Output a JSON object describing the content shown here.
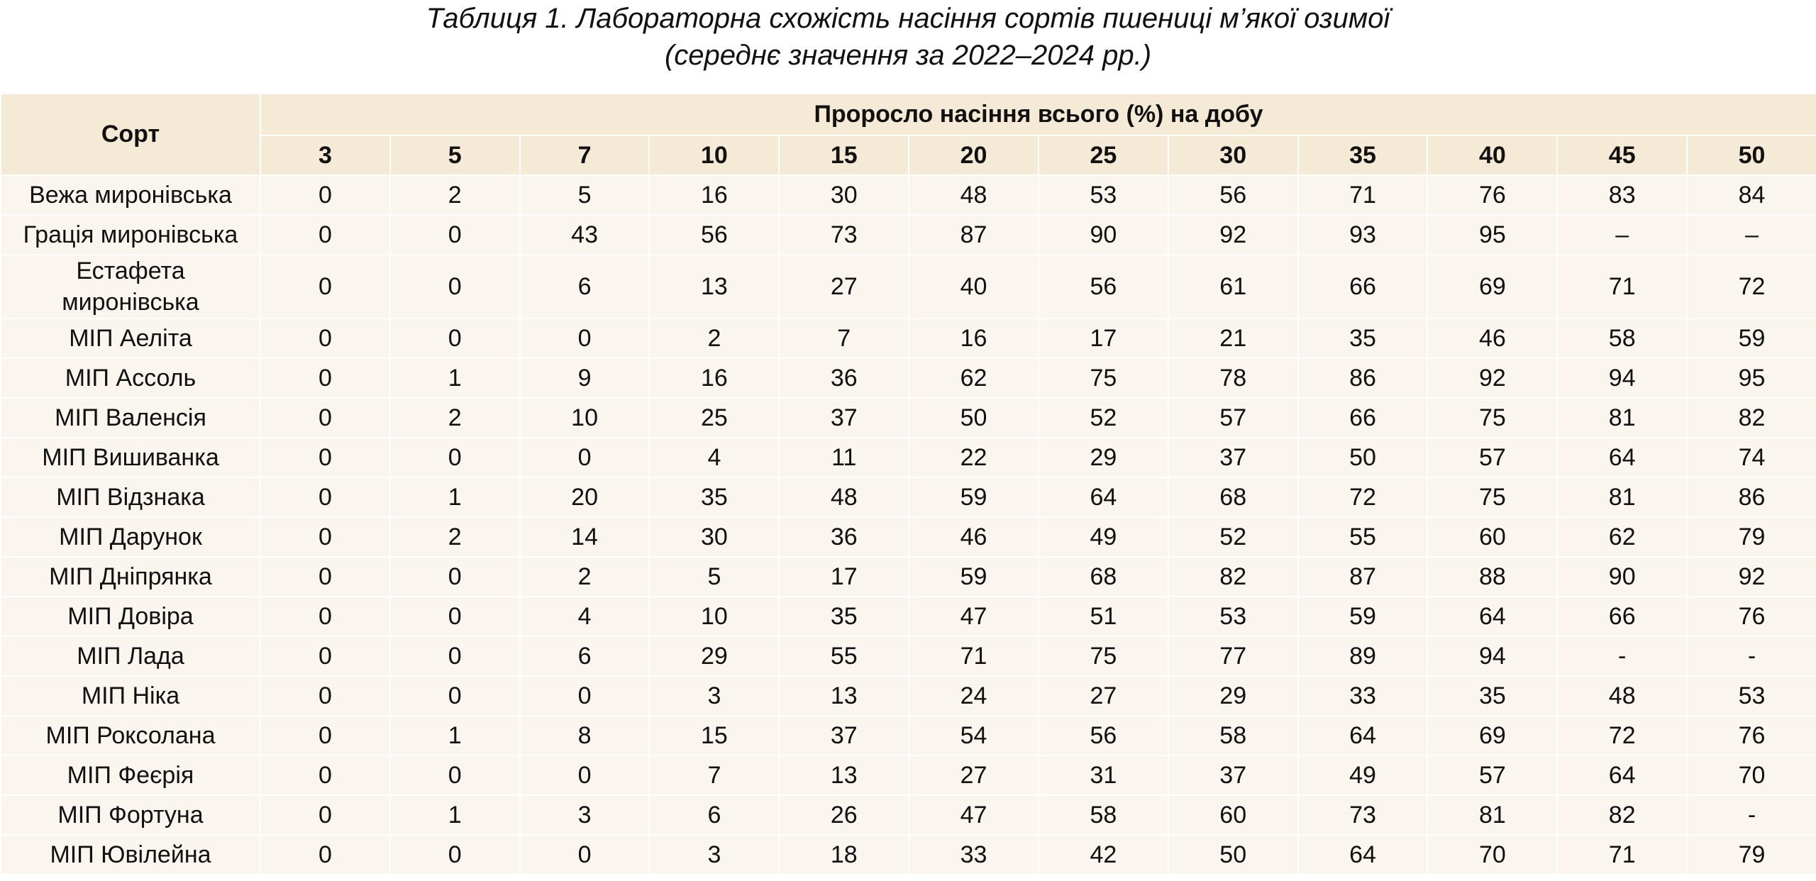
{
  "header": {
    "title": "Таблиця 1. Лабораторна схожість насіння сортів пшениці м’якої озимої",
    "subtitle": "(середнє значення за 2022–2024 рр.)"
  },
  "table": {
    "columns": {
      "variety": "Сорт",
      "group": "Проросло насіння всього (%) на добу",
      "days": [
        3,
        5,
        7,
        10,
        15,
        20,
        25,
        30,
        35,
        40,
        45,
        50
      ]
    },
    "rows": [
      {
        "name": "Вежа миронівська",
        "values": [
          0,
          2,
          5,
          16,
          30,
          48,
          53,
          56,
          71,
          76,
          83,
          84
        ]
      },
      {
        "name": "Грація миронівська",
        "values": [
          0,
          0,
          43,
          56,
          73,
          87,
          90,
          92,
          93,
          95,
          "–",
          "–"
        ]
      },
      {
        "name": "Естафета миронівська",
        "values": [
          0,
          0,
          6,
          13,
          27,
          40,
          56,
          61,
          66,
          69,
          71,
          72
        ]
      },
      {
        "name": "МІП Аеліта",
        "values": [
          0,
          0,
          0,
          2,
          7,
          16,
          17,
          21,
          35,
          46,
          58,
          59
        ]
      },
      {
        "name": "МІП Ассоль",
        "values": [
          0,
          1,
          9,
          16,
          36,
          62,
          75,
          78,
          86,
          92,
          94,
          95
        ]
      },
      {
        "name": "МІП Валенсія",
        "values": [
          0,
          2,
          10,
          25,
          37,
          50,
          52,
          57,
          66,
          75,
          81,
          82
        ]
      },
      {
        "name": "МІП Вишиванка",
        "values": [
          0,
          0,
          0,
          4,
          11,
          22,
          29,
          37,
          50,
          57,
          64,
          74
        ]
      },
      {
        "name": "МІП Відзнака",
        "values": [
          0,
          1,
          20,
          35,
          48,
          59,
          64,
          68,
          72,
          75,
          81,
          86
        ]
      },
      {
        "name": "МІП Дарунок",
        "values": [
          0,
          2,
          14,
          30,
          36,
          46,
          49,
          52,
          55,
          60,
          62,
          79
        ]
      },
      {
        "name": "МІП Дніпрянка",
        "values": [
          0,
          0,
          2,
          5,
          17,
          59,
          68,
          82,
          87,
          88,
          90,
          92
        ]
      },
      {
        "name": "МІП Довіра",
        "values": [
          0,
          0,
          4,
          10,
          35,
          47,
          51,
          53,
          59,
          64,
          66,
          76
        ]
      },
      {
        "name": "МІП Лада",
        "values": [
          0,
          0,
          6,
          29,
          55,
          71,
          75,
          77,
          89,
          94,
          "-",
          "-"
        ]
      },
      {
        "name": "МІП Ніка",
        "values": [
          0,
          0,
          0,
          3,
          13,
          24,
          27,
          29,
          33,
          35,
          48,
          53
        ]
      },
      {
        "name": "МІП Роксолана",
        "values": [
          0,
          1,
          8,
          15,
          37,
          54,
          56,
          58,
          64,
          69,
          72,
          76
        ]
      },
      {
        "name": "МІП Феєрія",
        "values": [
          0,
          0,
          0,
          7,
          13,
          27,
          31,
          37,
          49,
          57,
          64,
          70
        ]
      },
      {
        "name": "МІП Фортуна",
        "values": [
          0,
          1,
          3,
          6,
          26,
          47,
          58,
          60,
          73,
          81,
          82,
          "-"
        ]
      },
      {
        "name": "МІП Ювілейна",
        "values": [
          0,
          0,
          0,
          3,
          18,
          33,
          42,
          50,
          64,
          70,
          71,
          79
        ]
      }
    ]
  }
}
